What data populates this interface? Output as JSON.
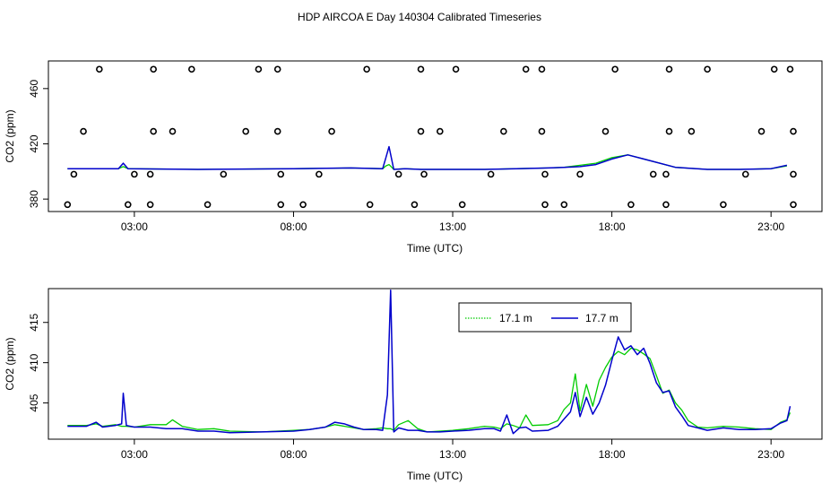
{
  "title": "HDP AIRCOA E  Day 140304  Calibrated Timeseries",
  "colors": {
    "green": "#00cc00",
    "blue": "#0000cc",
    "frame": "#000000"
  },
  "chart_data": [
    {
      "type": "line",
      "xlabel": "Time (UTC)",
      "ylabel": "CO2 (ppm)",
      "xlim": [
        0.3,
        24.6
      ],
      "ylim": [
        371,
        480
      ],
      "xticks": [
        3,
        8,
        13,
        18,
        23
      ],
      "xtick_labels": [
        "03:00",
        "08:00",
        "13:00",
        "18:00",
        "23:00"
      ],
      "yticks": [
        380,
        420,
        460
      ],
      "ytick_labels": [
        "380",
        "420",
        "460"
      ],
      "calibration_points": [
        [
          1.9,
          474
        ],
        [
          3.6,
          474
        ],
        [
          4.8,
          474
        ],
        [
          6.9,
          474
        ],
        [
          7.5,
          474
        ],
        [
          10.3,
          474
        ],
        [
          12,
          474
        ],
        [
          13.1,
          474
        ],
        [
          15.3,
          474
        ],
        [
          15.8,
          474
        ],
        [
          18.1,
          474
        ],
        [
          19.8,
          474
        ],
        [
          21,
          474
        ],
        [
          23.1,
          474
        ],
        [
          23.6,
          474
        ],
        [
          1.4,
          429
        ],
        [
          3.6,
          429
        ],
        [
          4.2,
          429
        ],
        [
          6.5,
          429
        ],
        [
          7.5,
          429
        ],
        [
          9.2,
          429
        ],
        [
          12,
          429
        ],
        [
          12.6,
          429
        ],
        [
          14.6,
          429
        ],
        [
          15.8,
          429
        ],
        [
          17.8,
          429
        ],
        [
          19.8,
          429
        ],
        [
          20.5,
          429
        ],
        [
          22.7,
          429
        ],
        [
          23.7,
          429
        ],
        [
          1.1,
          398
        ],
        [
          3,
          398
        ],
        [
          3.5,
          398
        ],
        [
          5.8,
          398
        ],
        [
          7.6,
          398
        ],
        [
          8.8,
          398
        ],
        [
          11.3,
          398
        ],
        [
          12.1,
          398
        ],
        [
          14.2,
          398
        ],
        [
          15.9,
          398
        ],
        [
          17,
          398
        ],
        [
          19.3,
          398
        ],
        [
          19.7,
          398
        ],
        [
          22.2,
          398
        ],
        [
          23.7,
          398
        ],
        [
          0.9,
          376
        ],
        [
          2.8,
          376
        ],
        [
          3.5,
          376
        ],
        [
          5.3,
          376
        ],
        [
          7.6,
          376
        ],
        [
          8.3,
          376
        ],
        [
          10.4,
          376
        ],
        [
          11.8,
          376
        ],
        [
          13.3,
          376
        ],
        [
          15.9,
          376
        ],
        [
          16.5,
          376
        ],
        [
          18.6,
          376
        ],
        [
          19.7,
          376
        ],
        [
          21.5,
          376
        ],
        [
          23.7,
          376
        ]
      ],
      "series": [
        {
          "name": "17.1 m",
          "x": [
            0.9,
            2.5,
            2.65,
            2.8,
            5,
            8,
            9.8,
            10.8,
            10.9,
            11,
            11.15,
            11.5,
            12,
            13,
            14,
            15,
            16,
            16.5,
            17,
            17.5,
            18,
            18.5,
            19,
            20,
            21,
            22,
            23,
            23.5
          ],
          "y": [
            402,
            402,
            403.5,
            402,
            401.5,
            402,
            402.5,
            402,
            404,
            405,
            401.5,
            402,
            401.5,
            401.5,
            401.5,
            402,
            402.5,
            403,
            404.5,
            406,
            410,
            412,
            409,
            403,
            401.5,
            401.5,
            402,
            404
          ]
        },
        {
          "name": "17.7 m",
          "x": [
            0.9,
            2.5,
            2.65,
            2.8,
            5,
            8,
            9.8,
            10.8,
            10.9,
            11,
            11.15,
            11.5,
            12,
            13,
            14,
            15,
            16,
            16.5,
            17,
            17.5,
            18,
            18.5,
            19,
            20,
            21,
            22,
            23,
            23.5
          ],
          "y": [
            402,
            402,
            406,
            402,
            401.5,
            402,
            402.5,
            402,
            410,
            418,
            401.5,
            402,
            401.5,
            401.5,
            401.5,
            402,
            402.5,
            403,
            403.5,
            405,
            409,
            412,
            409,
            403,
            401.5,
            401.5,
            402,
            404.5
          ]
        }
      ]
    },
    {
      "type": "line",
      "xlabel": "Time (UTC)",
      "ylabel": "CO2 (ppm)",
      "xlim": [
        0.3,
        24.6
      ],
      "ylim": [
        400.5,
        419.2
      ],
      "xticks": [
        3,
        8,
        13,
        18,
        23
      ],
      "xtick_labels": [
        "03:00",
        "08:00",
        "13:00",
        "18:00",
        "23:00"
      ],
      "yticks": [
        405,
        410,
        415
      ],
      "ytick_labels": [
        "405",
        "410",
        "415"
      ],
      "legend": {
        "position": "top-right",
        "entries": [
          "17.1 m",
          "17.7 m"
        ]
      },
      "series": [
        {
          "name": "17.1 m",
          "x": [
            0.9,
            1.5,
            1.8,
            2,
            2.4,
            2.6,
            2.75,
            3,
            3.5,
            4,
            4.2,
            4.5,
            5,
            5.5,
            6,
            7,
            8,
            8.5,
            9,
            9.3,
            9.6,
            9.9,
            10.2,
            10.6,
            10.8,
            10.95,
            11.05,
            11.15,
            11.3,
            11.6,
            11.9,
            12.2,
            12.6,
            13,
            13.5,
            14,
            14.3,
            14.5,
            14.7,
            14.9,
            15.1,
            15.3,
            15.5,
            16,
            16.3,
            16.5,
            16.7,
            16.85,
            17,
            17.2,
            17.4,
            17.6,
            17.8,
            18,
            18.2,
            18.4,
            18.6,
            18.8,
            19,
            19.2,
            19.4,
            19.6,
            19.8,
            20,
            20.2,
            20.4,
            20.7,
            21,
            21.5,
            22,
            22.5,
            23,
            23.3,
            23.5,
            23.6
          ],
          "y": [
            402.2,
            402.2,
            402.4,
            402.1,
            402.3,
            402.1,
            402.1,
            402,
            402.3,
            402.3,
            402.9,
            402.1,
            401.7,
            401.8,
            401.5,
            401.4,
            401.6,
            401.7,
            402,
            402.3,
            402.1,
            401.9,
            401.7,
            401.8,
            401.9,
            401.8,
            401.8,
            401.6,
            402.3,
            402.8,
            401.8,
            401.4,
            401.5,
            401.6,
            401.8,
            402.1,
            402,
            401.8,
            402.4,
            402.2,
            401.9,
            403.5,
            402.2,
            402.3,
            402.8,
            404.2,
            405,
            408.6,
            404,
            407.3,
            404.6,
            407.8,
            409.4,
            410.7,
            411.4,
            411,
            411.8,
            411.6,
            411.1,
            410.5,
            408.4,
            406.2,
            406.6,
            405,
            404.1,
            402.8,
            402,
            401.9,
            402.1,
            402,
            401.8,
            401.7,
            402.6,
            402.9,
            403.8
          ]
        },
        {
          "name": "17.7 m",
          "x": [
            0.9,
            1.5,
            1.8,
            2,
            2.4,
            2.6,
            2.65,
            2.75,
            3,
            3.5,
            4,
            4.5,
            5,
            5.5,
            6,
            7,
            8,
            8.5,
            9,
            9.3,
            9.6,
            9.9,
            10.2,
            10.6,
            10.8,
            10.95,
            11.05,
            11.15,
            11.3,
            11.6,
            11.9,
            12.2,
            12.6,
            13,
            13.5,
            14,
            14.3,
            14.5,
            14.7,
            14.9,
            15.1,
            15.3,
            15.5,
            16,
            16.3,
            16.5,
            16.7,
            16.85,
            17,
            17.2,
            17.4,
            17.6,
            17.8,
            18,
            18.2,
            18.4,
            18.6,
            18.8,
            19,
            19.2,
            19.4,
            19.6,
            19.8,
            20,
            20.2,
            20.4,
            20.7,
            21,
            21.5,
            22,
            22.5,
            23,
            23.3,
            23.5,
            23.6
          ],
          "y": [
            402.1,
            402.1,
            402.6,
            402,
            402.2,
            402.4,
            406.2,
            402.2,
            402,
            402,
            401.8,
            401.8,
            401.5,
            401.5,
            401.3,
            401.4,
            401.5,
            401.7,
            402,
            402.6,
            402.4,
            402,
            401.7,
            401.7,
            401.6,
            406,
            419,
            401.4,
            401.9,
            401.6,
            401.6,
            401.4,
            401.4,
            401.5,
            401.6,
            401.8,
            401.8,
            401.5,
            403.5,
            401.2,
            401.9,
            402,
            401.5,
            401.6,
            402.1,
            403,
            403.9,
            406.3,
            403.3,
            405.7,
            403.6,
            405,
            407.2,
            410.3,
            413.2,
            411.6,
            412.1,
            411,
            411.8,
            409.9,
            407.5,
            406.3,
            406.5,
            404.5,
            403.4,
            402.2,
            401.9,
            401.6,
            401.9,
            401.7,
            401.7,
            401.8,
            402.5,
            402.8,
            404.6
          ]
        }
      ]
    }
  ]
}
